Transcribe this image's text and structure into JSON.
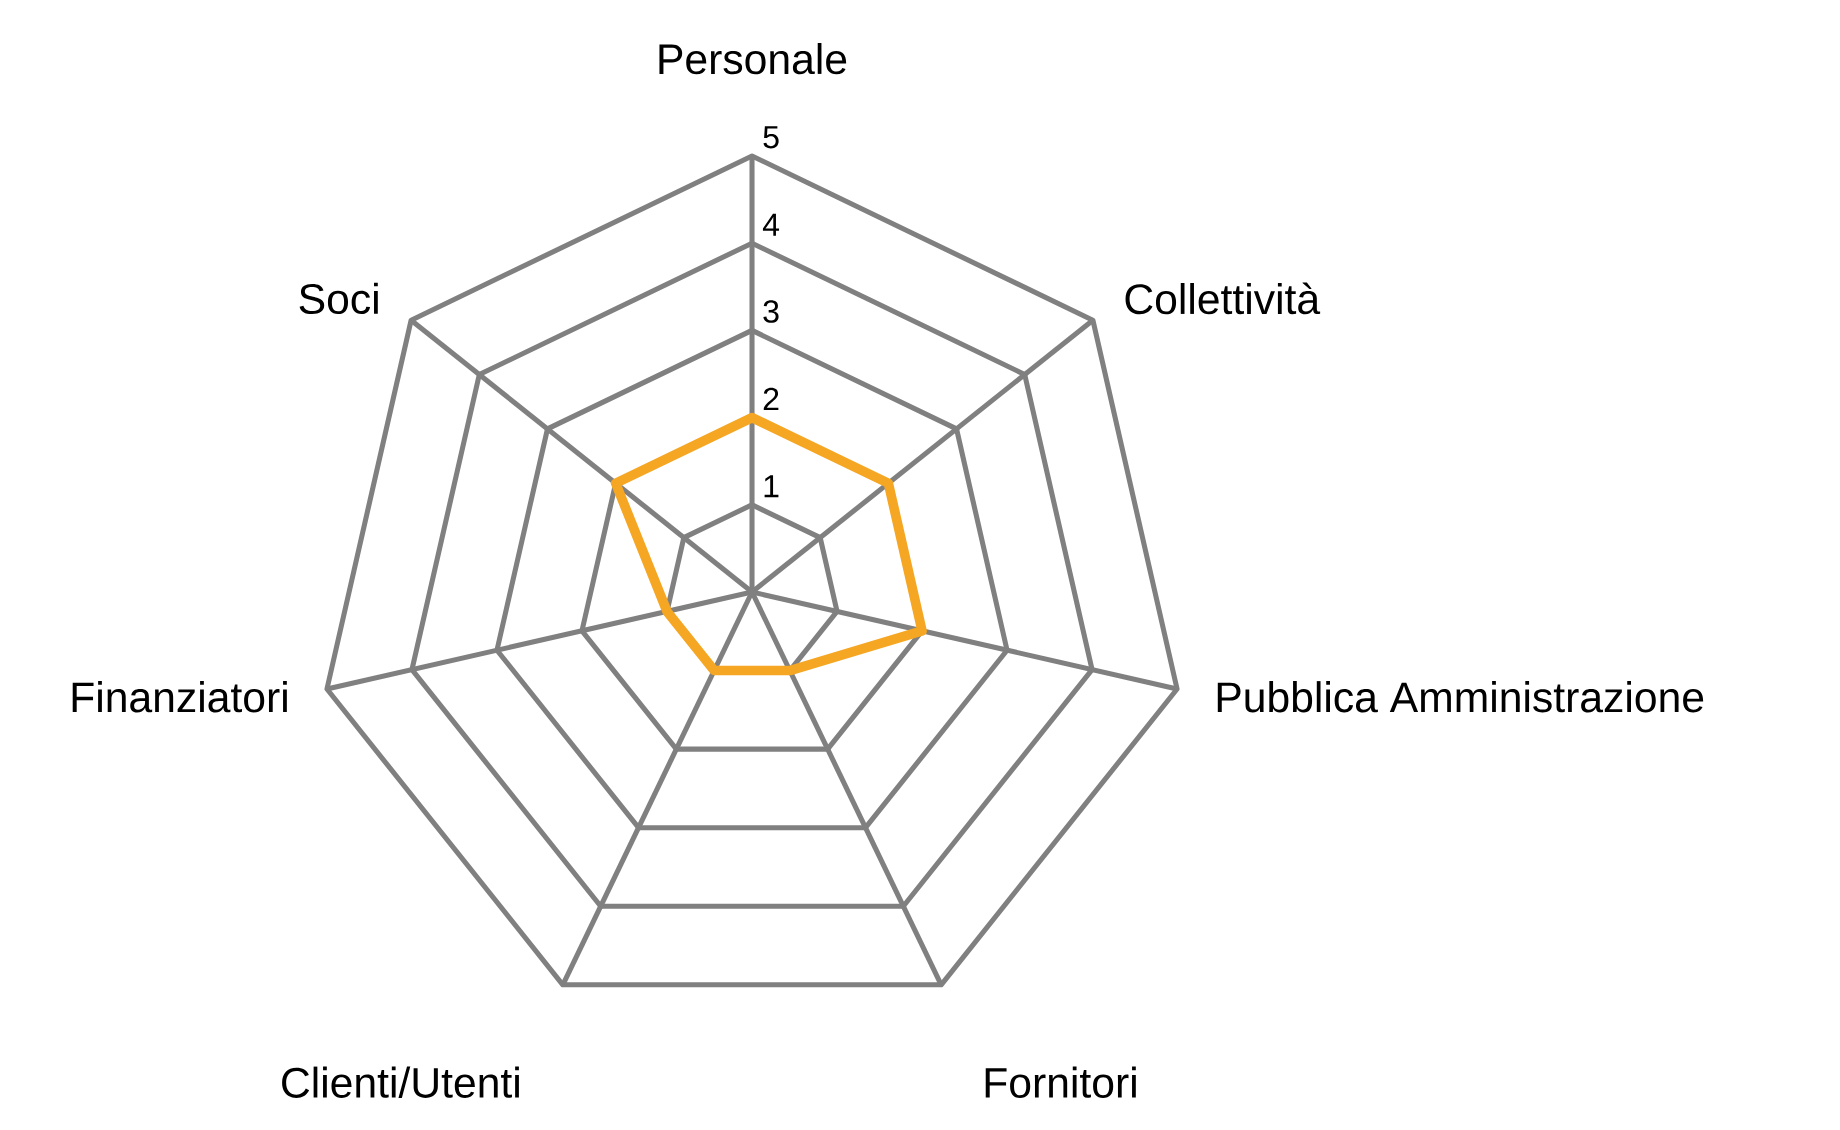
{
  "chart_data": {
    "type": "radar",
    "categories": [
      "Personale",
      "Collettività",
      "Pubblica Amministrazione",
      "Fornitori",
      "Clienti/Utenti",
      "Finanziatori",
      "Soci"
    ],
    "series": [
      {
        "color": "#f5a623",
        "values": [
          2,
          2,
          2,
          1,
          1,
          1,
          2
        ]
      }
    ],
    "ylim": [
      0,
      5
    ],
    "yticks": [
      1,
      2,
      3,
      4,
      5
    ],
    "grid": true
  }
}
